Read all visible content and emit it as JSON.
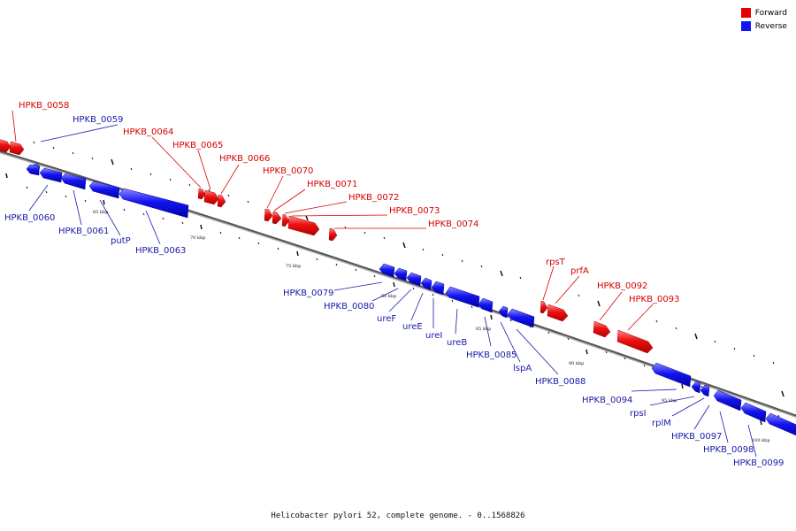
{
  "legend": {
    "forward": {
      "label": "Forward",
      "color": "#e60000"
    },
    "reverse": {
      "label": "Reverse",
      "color": "#1414f0"
    }
  },
  "caption": "Helicobacter pylori 52, complete genome. - 0..1568826",
  "scale_labels": [
    "65 kbp",
    "70 kbp",
    "75 kbp",
    "80 kbp",
    "85 kbp",
    "90 kbp",
    "95 kbp",
    "100 kbp"
  ],
  "forward_genes": [
    "HPKB_0058",
    "HPKB_0064",
    "HPKB_0065",
    "HPKB_0066",
    "HPKB_0070",
    "HPKB_0071",
    "HPKB_0072",
    "HPKB_0073",
    "HPKB_0074",
    "rpsT",
    "prfA",
    "HPKB_0092",
    "HPKB_0093"
  ],
  "reverse_genes": [
    "HPKB_0059",
    "HPKB_0060",
    "HPKB_0061",
    "putP",
    "HPKB_0063",
    "HPKB_0079",
    "HPKB_0080",
    "ureF",
    "ureE",
    "ureI",
    "ureB",
    "HPKB_0085",
    "lspA",
    "HPKB_0088",
    "HPKB_0094",
    "rpsI",
    "rplM",
    "HPKB_0097",
    "HPKB_0098",
    "HPKB_0099"
  ]
}
